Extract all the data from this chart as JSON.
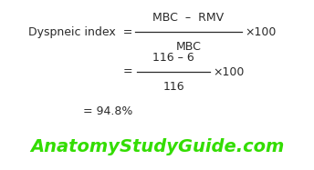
{
  "bg_color": "#ffffff",
  "text_color": "#2a2a2a",
  "green_color": "#33dd00",
  "formula_label": "Dyspneic index  =",
  "numerator1": "MBC  –  RMV",
  "denominator1": "MBC",
  "times100_1": "×100",
  "eq2": "=",
  "numerator2": "116 – 6",
  "denominator2": "116",
  "times100_2": "×100",
  "eq3": "= 94.8%",
  "watermark": "AnatomyStudyGuide.com",
  "figsize": [
    3.44,
    1.87
  ],
  "dpi": 100
}
